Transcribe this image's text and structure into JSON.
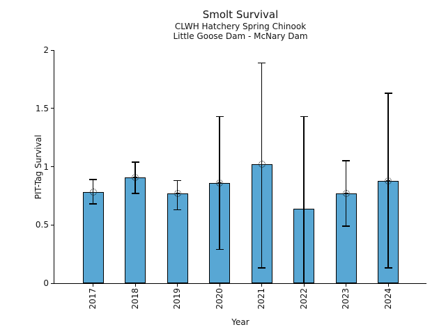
{
  "chart_data": {
    "type": "bar",
    "title": "Smolt Survival",
    "subtitle_lines": [
      "CLWH Hatchery Spring Chinook",
      "Little Goose Dam - McNary Dam"
    ],
    "xlabel": "Year",
    "ylabel": "PIT-Tag Survival",
    "categories": [
      "2017",
      "2018",
      "2019",
      "2020",
      "2021",
      "2022",
      "2023",
      "2024"
    ],
    "values": [
      0.78,
      0.91,
      0.77,
      0.86,
      1.02,
      0.64,
      0.77,
      0.88
    ],
    "error_low": [
      0.68,
      0.77,
      0.63,
      0.29,
      0.13,
      0.0,
      0.49,
      0.13
    ],
    "error_high": [
      0.89,
      1.04,
      0.88,
      1.43,
      1.89,
      1.43,
      1.05,
      1.63
    ],
    "point_marker_shown": [
      true,
      true,
      true,
      true,
      true,
      false,
      true,
      true
    ],
    "ylim": [
      0,
      2
    ],
    "yticks": [
      0,
      0.5,
      1,
      1.5,
      2
    ],
    "ytick_labels": [
      "0",
      "0.5",
      "1",
      "1.5",
      "2"
    ],
    "xtick_rotation_degrees": 90,
    "grid": "off",
    "legend": "none",
    "bar_color": "#58A7D4",
    "bar_edge_color": "#000000",
    "error_bar_color": "#000000",
    "axis_color": "#000000"
  }
}
